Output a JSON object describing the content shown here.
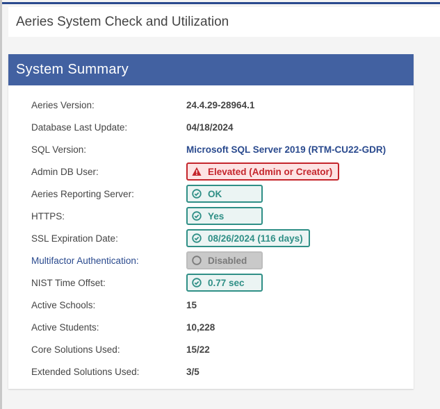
{
  "page": {
    "title": "Aeries System Check and Utilization"
  },
  "panel": {
    "title": "System Summary"
  },
  "colors": {
    "accent": "#4261a1",
    "ok": "#2f8f86",
    "error": "#c4252b",
    "disabled": "#c9c9c9"
  },
  "rows": [
    {
      "label": "Aeries Version:",
      "value": "24.4.29-28964.1",
      "kind": "text"
    },
    {
      "label": "Database Last Update:",
      "value": "04/18/2024",
      "kind": "text"
    },
    {
      "label": "SQL Version:",
      "value": "Microsoft SQL Server 2019 (RTM-CU22-GDR)",
      "kind": "blue"
    },
    {
      "label": "Admin DB User:",
      "value": "Elevated (Admin or Creator)",
      "kind": "error",
      "icon": "warning-icon"
    },
    {
      "label": "Aeries Reporting Server:",
      "value": "OK",
      "kind": "ok",
      "icon": "check-circle-icon"
    },
    {
      "label": "HTTPS:",
      "value": "Yes",
      "kind": "ok",
      "icon": "check-circle-icon"
    },
    {
      "label": "SSL Expiration Date:",
      "value": "08/26/2024 (116 days)",
      "kind": "ok",
      "icon": "check-circle-icon"
    },
    {
      "label": "Multifactor Authentication:",
      "value": "Disabled",
      "kind": "disabled",
      "icon": "circle-icon",
      "label_link": true
    },
    {
      "label": "NIST Time Offset:",
      "value": "0.77 sec",
      "kind": "ok",
      "icon": "check-circle-icon"
    },
    {
      "label": "Active Schools:",
      "value": "15",
      "kind": "text"
    },
    {
      "label": "Active Students:",
      "value": "10,228",
      "kind": "text"
    },
    {
      "label": "Core Solutions Used:",
      "value": "15/22",
      "kind": "text"
    },
    {
      "label": "Extended Solutions Used:",
      "value": "3/5",
      "kind": "text"
    }
  ]
}
